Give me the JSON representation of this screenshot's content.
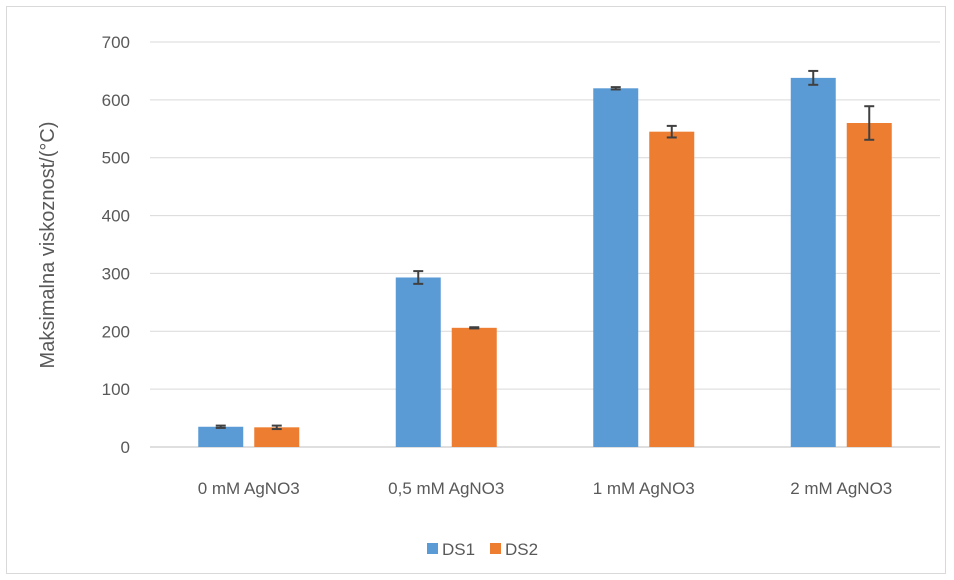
{
  "chart_data": {
    "type": "bar",
    "title": "",
    "xlabel": "",
    "ylabel": "Maksimalna viskoznost/(°C)",
    "ylim": [
      0,
      700
    ],
    "yticks": [
      0,
      100,
      200,
      300,
      400,
      500,
      600,
      700
    ],
    "grid": true,
    "legend_position": "bottom",
    "categories": [
      "0 mM AgNO3",
      "0,5 mM AgNO3",
      "1 mM AgNO3",
      "2 mM AgNO3"
    ],
    "series": [
      {
        "name": "DS1",
        "color": "#5b9bd5",
        "values": [
          35,
          293,
          620,
          638
        ],
        "errors": [
          2,
          11,
          2,
          12
        ]
      },
      {
        "name": "DS2",
        "color": "#ed7d31",
        "values": [
          34,
          206,
          545,
          560
        ],
        "errors": [
          3,
          1,
          10,
          29
        ]
      }
    ]
  }
}
